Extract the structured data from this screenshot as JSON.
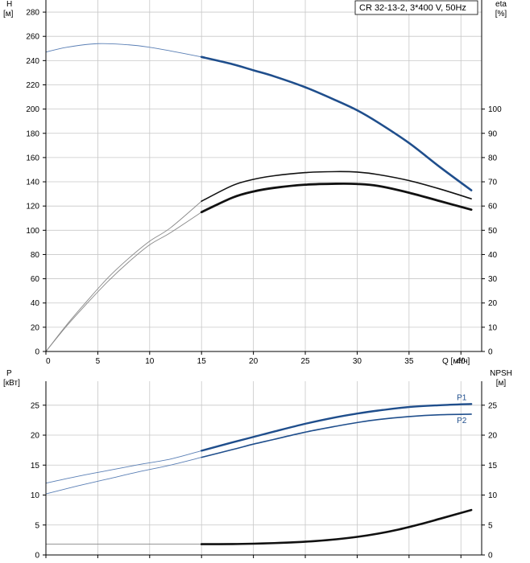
{
  "legend_box": {
    "text": "CR 32-13-2, 3*400 V, 50Hz"
  },
  "colors": {
    "blue": "#1f4e8c",
    "blue_thin": "#5a7fb5",
    "black": "#111111",
    "gray_thin": "#888888",
    "grid": "#c8c8c8"
  },
  "chart_data": [
    {
      "type": "line",
      "title": "",
      "xlabel": "Q [м³/ч]",
      "xlim": [
        0,
        42
      ],
      "x_ticks": [
        0,
        5,
        10,
        15,
        20,
        25,
        30,
        35,
        40
      ],
      "ylabel": "H [м]",
      "ylabel_line1": "H",
      "ylabel_line2": "[м]",
      "ylim": [
        0,
        290
      ],
      "y_ticks": [
        0,
        20,
        40,
        60,
        80,
        100,
        120,
        140,
        160,
        180,
        200,
        220,
        240,
        260,
        280
      ],
      "y2label": "eta [%]",
      "y2label_line1": "eta",
      "y2label_line2": "[%]",
      "y2lim": [
        0,
        145
      ],
      "y2_ticks": [
        0,
        10,
        20,
        30,
        40,
        50,
        60,
        70,
        80,
        90,
        100
      ],
      "grid": true,
      "series": [
        {
          "axis": "left",
          "color": "blue",
          "width": 2.6,
          "points": [
            [
              0,
              247
            ],
            [
              2,
              251
            ],
            [
              5,
              254
            ],
            [
              8,
              253
            ],
            [
              10,
              251
            ],
            [
              12,
              248
            ],
            [
              15,
              243
            ],
            [
              18,
              237
            ],
            [
              20,
              232
            ],
            [
              22,
              227
            ],
            [
              25,
              218
            ],
            [
              28,
              207
            ],
            [
              30,
              199
            ],
            [
              32,
              189
            ],
            [
              35,
              172
            ],
            [
              38,
              152
            ],
            [
              41,
              133
            ]
          ],
          "thin_until": 15
        },
        {
          "axis": "right",
          "color": "black",
          "width": 1.6,
          "points": [
            [
              0,
              0
            ],
            [
              2,
              11
            ],
            [
              4,
              21
            ],
            [
              6,
              30.5
            ],
            [
              8,
              38.5
            ],
            [
              10,
              45.5
            ],
            [
              12,
              51
            ],
            [
              15,
              62
            ],
            [
              18,
              68.5
            ],
            [
              20,
              71
            ],
            [
              22,
              72.5
            ],
            [
              25,
              73.8
            ],
            [
              28,
              74.2
            ],
            [
              30,
              74
            ],
            [
              32,
              73
            ],
            [
              35,
              70.5
            ],
            [
              38,
              67
            ],
            [
              41,
              63
            ]
          ],
          "thin_until": 15
        },
        {
          "axis": "right",
          "color": "black",
          "width": 2.8,
          "points": [
            [
              0,
              0
            ],
            [
              2,
              10.5
            ],
            [
              4,
              20
            ],
            [
              6,
              29
            ],
            [
              8,
              37
            ],
            [
              10,
              44
            ],
            [
              12,
              49
            ],
            [
              15,
              57.5
            ],
            [
              18,
              63.5
            ],
            [
              20,
              66
            ],
            [
              22,
              67.5
            ],
            [
              25,
              68.8
            ],
            [
              28,
              69.2
            ],
            [
              30,
              69.1
            ],
            [
              32,
              68.3
            ],
            [
              35,
              65.5
            ],
            [
              38,
              62
            ],
            [
              41,
              58.5
            ]
          ],
          "thin_until": 15
        }
      ]
    },
    {
      "type": "line",
      "title": "",
      "xlabel": "",
      "xlim": [
        0,
        42
      ],
      "ylabel": "P [кВт]",
      "ylabel_line1": "P",
      "ylabel_line2": "[кВт]",
      "ylim": [
        0,
        29
      ],
      "y_ticks": [
        0,
        5,
        10,
        15,
        20,
        25
      ],
      "y2label": "NPSH [м]",
      "y2label_line1": "NPSH",
      "y2label_line2": "[м]",
      "y2lim": [
        0,
        29
      ],
      "y2_ticks": [
        0,
        5,
        10,
        15,
        20,
        25
      ],
      "grid": true,
      "series": [
        {
          "name": "P1",
          "axis": "left",
          "color": "blue",
          "width": 2.4,
          "points": [
            [
              0,
              12
            ],
            [
              3,
              13.1
            ],
            [
              6,
              14.1
            ],
            [
              9,
              15.1
            ],
            [
              12,
              16
            ],
            [
              15,
              17.4
            ],
            [
              18,
              18.8
            ],
            [
              20,
              19.7
            ],
            [
              22,
              20.6
            ],
            [
              25,
              21.9
            ],
            [
              28,
              23
            ],
            [
              30,
              23.6
            ],
            [
              32,
              24.1
            ],
            [
              35,
              24.7
            ],
            [
              38,
              25
            ],
            [
              41,
              25.2
            ]
          ],
          "thin_until": 15
        },
        {
          "name": "P2",
          "axis": "left",
          "color": "blue",
          "width": 1.6,
          "points": [
            [
              0,
              10.2
            ],
            [
              3,
              11.5
            ],
            [
              6,
              12.7
            ],
            [
              9,
              13.9
            ],
            [
              12,
              15
            ],
            [
              15,
              16.3
            ],
            [
              18,
              17.6
            ],
            [
              20,
              18.5
            ],
            [
              22,
              19.3
            ],
            [
              25,
              20.5
            ],
            [
              28,
              21.5
            ],
            [
              30,
              22.1
            ],
            [
              32,
              22.6
            ],
            [
              35,
              23.1
            ],
            [
              38,
              23.4
            ],
            [
              41,
              23.5
            ]
          ],
          "thin_until": 15
        },
        {
          "axis": "right",
          "color": "black",
          "width": 2.6,
          "points": [
            [
              0,
              1.8
            ],
            [
              5,
              1.8
            ],
            [
              10,
              1.8
            ],
            [
              15,
              1.8
            ],
            [
              18,
              1.82
            ],
            [
              20,
              1.88
            ],
            [
              22,
              1.98
            ],
            [
              24,
              2.12
            ],
            [
              26,
              2.33
            ],
            [
              28,
              2.62
            ],
            [
              30,
              3.02
            ],
            [
              32,
              3.56
            ],
            [
              34,
              4.25
            ],
            [
              36,
              5.1
            ],
            [
              38,
              6.05
            ],
            [
              41,
              7.5
            ]
          ],
          "thin_until": 15
        }
      ]
    }
  ]
}
